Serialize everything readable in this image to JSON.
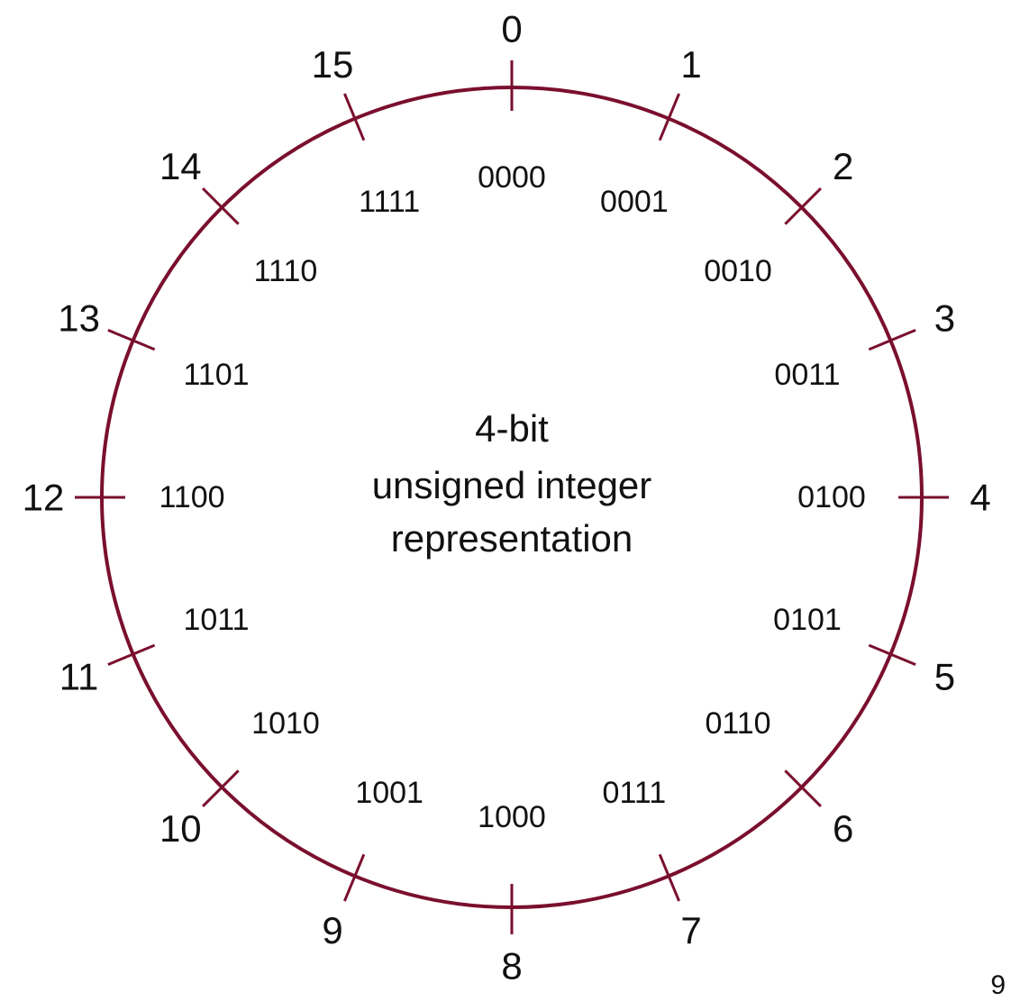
{
  "diagram": {
    "center_text": [
      "4-bit",
      "unsigned integer",
      "representation"
    ],
    "colors": {
      "ring": "#7a0f2e",
      "text": "#111111"
    },
    "positions": [
      {
        "decimal": "0",
        "binary": "0000"
      },
      {
        "decimal": "1",
        "binary": "0001"
      },
      {
        "decimal": "2",
        "binary": "0010"
      },
      {
        "decimal": "3",
        "binary": "0011"
      },
      {
        "decimal": "4",
        "binary": "0100"
      },
      {
        "decimal": "5",
        "binary": "0101"
      },
      {
        "decimal": "6",
        "binary": "0110"
      },
      {
        "decimal": "7",
        "binary": "0111"
      },
      {
        "decimal": "8",
        "binary": "1000"
      },
      {
        "decimal": "9",
        "binary": "1001"
      },
      {
        "decimal": "10",
        "binary": "1010"
      },
      {
        "decimal": "11",
        "binary": "1011"
      },
      {
        "decimal": "12",
        "binary": "1100"
      },
      {
        "decimal": "13",
        "binary": "1101"
      },
      {
        "decimal": "14",
        "binary": "1110"
      },
      {
        "decimal": "15",
        "binary": "1111"
      }
    ]
  },
  "page_number": "9"
}
